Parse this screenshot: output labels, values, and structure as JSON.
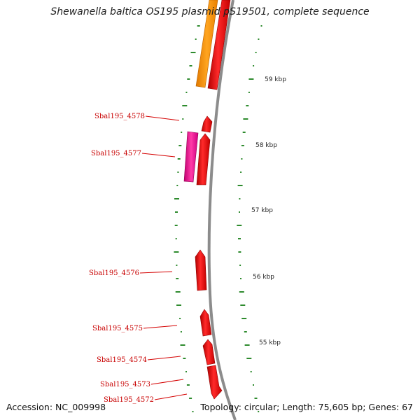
{
  "title": "Shewanella baltica OS195 plasmid pS19501, complete sequence",
  "accession_text": "Accession: NC_009998",
  "summary_text": "Topology: circular; Length: 75,605 bp; Genes: 67",
  "colors": {
    "gene_red": "#e80000",
    "gene_orange": "#ff9900",
    "gene_magenta": "#e8128c",
    "backbone": "#8c8c8c",
    "gc_skew_green": "#2e8b2e",
    "label_red": "#c80000"
  },
  "scale_ticks": [
    "59 kbp",
    "58 kbp",
    "57 kbp",
    "56 kbp",
    "55 kbp"
  ],
  "gene_labels": [
    "Sbal195_4578",
    "Sbal195_4577",
    "Sbal195_4576",
    "Sbal195_4575",
    "Sbal195_4574",
    "Sbal195_4573",
    "Sbal195_4572"
  ]
}
